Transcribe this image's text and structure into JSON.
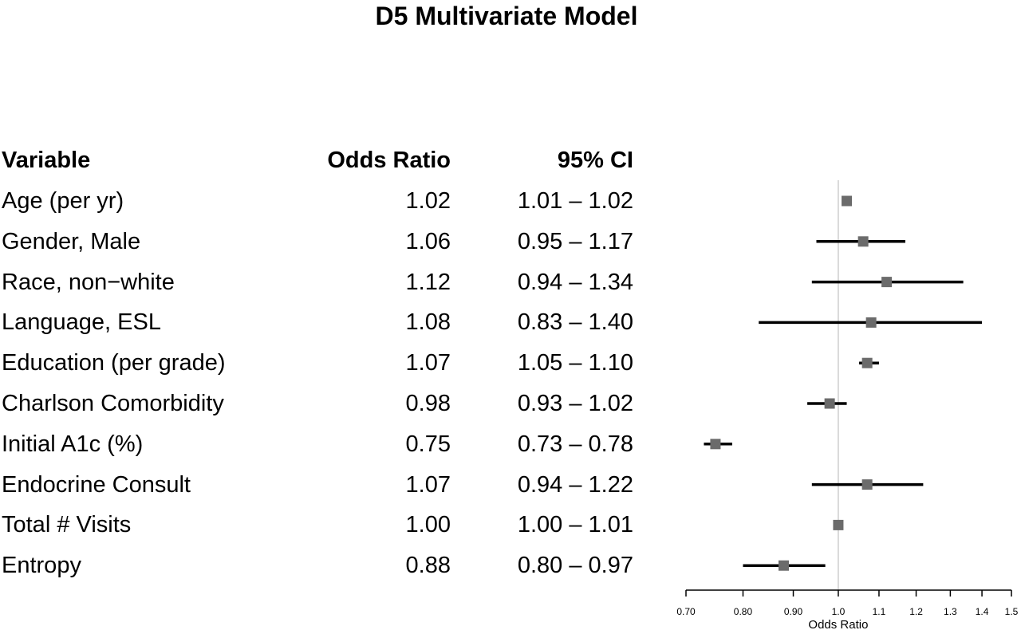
{
  "title": "D5 Multivariate Model",
  "headers": {
    "variable": "Variable",
    "odds_ratio": "Odds Ratio",
    "ci": "95% CI"
  },
  "chart_data": {
    "type": "forest",
    "title": "D5 Multivariate Model",
    "xlabel": "Odds Ratio",
    "x_scale": "log",
    "xlim": [
      0.7,
      1.5
    ],
    "reference_line": 1.0,
    "xticks": [
      0.7,
      0.8,
      0.9,
      1.0,
      1.1,
      1.2,
      1.3,
      1.4,
      1.5
    ],
    "xtick_labels": [
      "0.70",
      "0.80",
      "0.90",
      "1.0",
      "1.1",
      "1.2",
      "1.3",
      "1.4",
      "1.5"
    ],
    "rows": [
      {
        "variable": "Age (per yr)",
        "or": 1.02,
        "lo": 1.01,
        "hi": 1.02,
        "or_text": "1.02",
        "ci_text": "1.01 – 1.02"
      },
      {
        "variable": "Gender, Male",
        "or": 1.06,
        "lo": 0.95,
        "hi": 1.17,
        "or_text": "1.06",
        "ci_text": "0.95 – 1.17"
      },
      {
        "variable": "Race, non−white",
        "or": 1.12,
        "lo": 0.94,
        "hi": 1.34,
        "or_text": "1.12",
        "ci_text": "0.94 – 1.34"
      },
      {
        "variable": "Language, ESL",
        "or": 1.08,
        "lo": 0.83,
        "hi": 1.4,
        "or_text": "1.08",
        "ci_text": "0.83 – 1.40"
      },
      {
        "variable": "Education (per grade)",
        "or": 1.07,
        "lo": 1.05,
        "hi": 1.1,
        "or_text": "1.07",
        "ci_text": "1.05 – 1.10"
      },
      {
        "variable": "Charlson Comorbidity",
        "or": 0.98,
        "lo": 0.93,
        "hi": 1.02,
        "or_text": "0.98",
        "ci_text": "0.93 – 1.02"
      },
      {
        "variable": "Initial A1c (%)",
        "or": 0.75,
        "lo": 0.73,
        "hi": 0.78,
        "or_text": "0.75",
        "ci_text": "0.73 – 0.78"
      },
      {
        "variable": "Endocrine Consult",
        "or": 1.07,
        "lo": 0.94,
        "hi": 1.22,
        "or_text": "1.07",
        "ci_text": "0.94 – 1.22"
      },
      {
        "variable": "Total # Visits",
        "or": 1.0,
        "lo": 1.0,
        "hi": 1.01,
        "or_text": "1.00",
        "ci_text": "1.00 – 1.01"
      },
      {
        "variable": "Entropy",
        "or": 0.88,
        "lo": 0.8,
        "hi": 0.97,
        "or_text": "0.88",
        "ci_text": "0.80 – 0.97"
      }
    ],
    "colors": {
      "marker": "#6b6b6b",
      "ci_line": "#000000",
      "reference_line": "#d9d9d9",
      "axis": "#000000"
    }
  }
}
